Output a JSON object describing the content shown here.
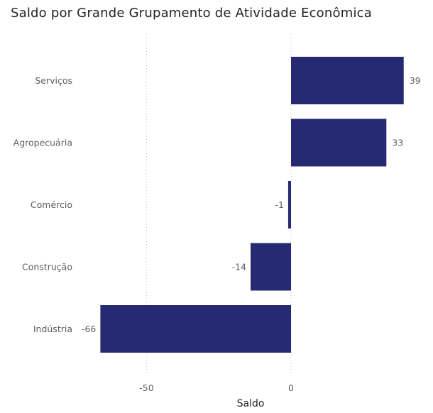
{
  "chart_data": {
    "type": "bar",
    "orientation": "horizontal",
    "title": "Saldo por Grande Grupamento de Atividade Econômica",
    "xlabel": "Saldo",
    "ylabel": "",
    "categories": [
      "Serviços",
      "Agropecuária",
      "Comércio",
      "Construção",
      "Indústria"
    ],
    "values": [
      39,
      33,
      -1,
      -14,
      -66
    ],
    "data_labels": [
      "39",
      "33",
      "-1",
      "-14",
      "-66"
    ],
    "x_ticks": [
      -50,
      0
    ],
    "x_tick_labels": [
      "-50",
      "0"
    ],
    "xlim": [
      -66,
      39
    ],
    "grid": "vertical-dotted",
    "legend": "none",
    "bar_color": "#252a72"
  }
}
